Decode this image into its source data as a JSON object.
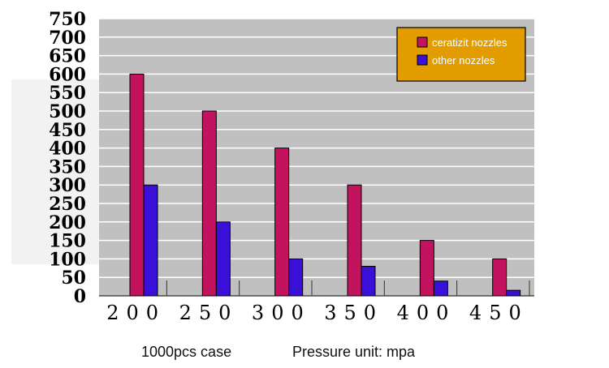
{
  "chart_data": {
    "type": "bar",
    "categories": [
      "200",
      "250",
      "300",
      "350",
      "400",
      "450"
    ],
    "series": [
      {
        "name": "ceratizit nozzles",
        "color": "#c4135e",
        "values": [
          600,
          500,
          400,
          300,
          150,
          100
        ]
      },
      {
        "name": "other nozzles",
        "color": "#3a10d8",
        "values": [
          300,
          200,
          100,
          80,
          40,
          15
        ]
      }
    ],
    "y_ticks": [
      "0",
      "50",
      "100",
      "150",
      "200",
      "250",
      "300",
      "350",
      "400",
      "450",
      "500",
      "550",
      "600",
      "650",
      "700",
      "750"
    ],
    "ylim": [
      0,
      750
    ],
    "grid": true,
    "legend_position": "top-right",
    "plot_background": "#c0c0c0",
    "legend_background": "#e39c00",
    "captions": [
      "1000pcs case",
      "Pressure unit: mpa"
    ]
  }
}
